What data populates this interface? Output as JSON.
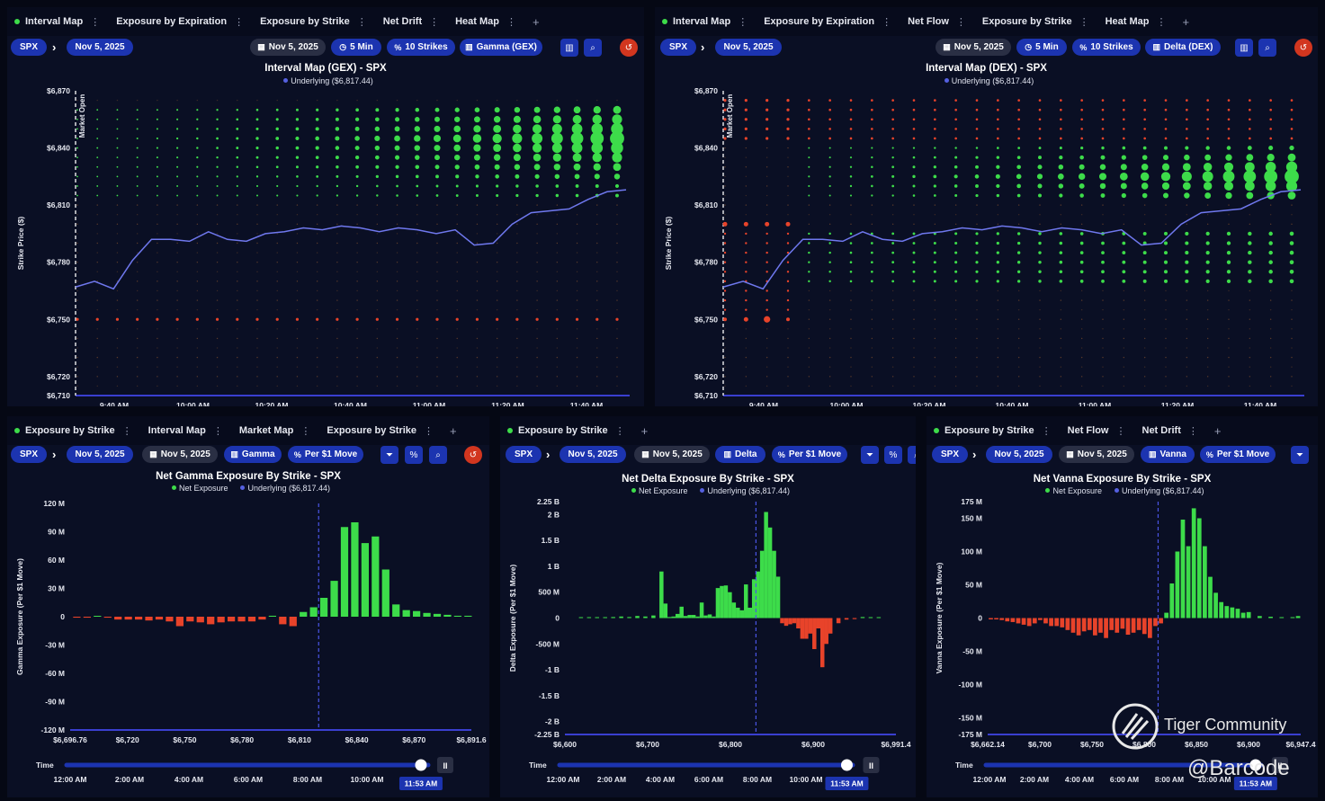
{
  "colors": {
    "green": "#3ddc4a",
    "red": "#e8432a",
    "blue": "#5560e0",
    "pill": "#1c34b0"
  },
  "panels": {
    "p1": {
      "tabs": [
        {
          "label": "Interval Map",
          "active": true
        },
        {
          "label": "Exposure by Expiration"
        },
        {
          "label": "Exposure by Strike"
        },
        {
          "label": "Net Drift"
        },
        {
          "label": "Heat Map"
        }
      ],
      "symbol": "SPX",
      "date": "Nov 5, 2025",
      "date2": "Nov 5, 2025",
      "interval": "5 Min",
      "strikes": "10 Strikes",
      "mode": "Gamma (GEX)",
      "title": "Interval Map (GEX) - SPX",
      "legend_underlying": "Underlying ($6,817.44)",
      "ylabel": "Strike Price ($)",
      "market_open": "Market Open"
    },
    "p2": {
      "tabs": [
        {
          "label": "Interval Map",
          "active": true
        },
        {
          "label": "Exposure by Expiration"
        },
        {
          "label": "Net Flow"
        },
        {
          "label": "Exposure by Strike"
        },
        {
          "label": "Heat Map"
        }
      ],
      "symbol": "SPX",
      "date": "Nov 5, 2025",
      "date2": "Nov 5, 2025",
      "interval": "5 Min",
      "strikes": "10 Strikes",
      "mode": "Delta (DEX)",
      "title": "Interval Map (DEX) - SPX",
      "legend_underlying": "Underlying ($6,817.44)",
      "ylabel": "Strike Price ($)",
      "market_open": "Market Open"
    },
    "p3": {
      "tabs": [
        {
          "label": "Exposure by Strike",
          "active": true
        },
        {
          "label": "Interval Map"
        },
        {
          "label": "Market Map"
        },
        {
          "label": "Exposure by Strike"
        }
      ],
      "symbol": "SPX",
      "date": "Nov 5, 2025",
      "date2": "Nov 5, 2025",
      "mode": "Gamma",
      "unit": "Per $1 Move",
      "title": "Net Gamma Exposure By Strike - SPX",
      "legend_net": "Net Exposure",
      "legend_underlying": "Underlying ($6,817.44)",
      "ylabel": "Gamma Exposure (Per $1 Move)"
    },
    "p4": {
      "tabs": [
        {
          "label": "Exposure by Strike",
          "active": true
        }
      ],
      "symbol": "SPX",
      "date": "Nov 5, 2025",
      "date2": "Nov 5, 2025",
      "mode": "Delta",
      "unit": "Per $1 Move",
      "title": "Net Delta Exposure By Strike - SPX",
      "legend_net": "Net Exposure",
      "legend_underlying": "Underlying ($6,817.44)",
      "ylabel": "Delta Exposure (Per $1 Move)"
    },
    "p5": {
      "tabs": [
        {
          "label": "Exposure by Strike",
          "active": true
        },
        {
          "label": "Net Flow"
        },
        {
          "label": "Net Drift"
        }
      ],
      "symbol": "SPX",
      "date": "Nov 5, 2025",
      "date2": "Nov 5, 2025",
      "mode": "Vanna",
      "unit": "Per $1 Move",
      "title": "Net Vanna Exposure By Strike - SPX",
      "legend_net": "Net Exposure",
      "legend_underlying": "Underlying ($6,817.44)",
      "ylabel": "Vanna Exposure (Per $1 Move)"
    }
  },
  "timeline": {
    "label": "Time",
    "ticks": [
      "12:00 AM",
      "2:00 AM",
      "4:00 AM",
      "6:00 AM",
      "8:00 AM",
      "10:00 AM"
    ],
    "current": "11:53 AM",
    "position": 0.98
  },
  "watermark": {
    "brand": "Tiger Community",
    "handle": "@Barcode"
  },
  "chart_data": [
    {
      "id": "gex_interval",
      "type": "scatter",
      "ylim": [
        6710,
        6870
      ],
      "yticks": [
        "$6,870",
        "$6,840",
        "$6,810",
        "$6,780",
        "$6,750",
        "$6,720",
        "$6,710"
      ],
      "ytick_values": [
        6870,
        6840,
        6810,
        6780,
        6750,
        6720,
        6710
      ],
      "xticks": [
        "9:40 AM",
        "10:00 AM",
        "10:20 AM",
        "10:40 AM",
        "11:00 AM",
        "11:20 AM",
        "11:40 AM"
      ],
      "underlying": [
        6767,
        6770,
        6766,
        6781,
        6792,
        6792,
        6791,
        6796,
        6792,
        6791,
        6795,
        6796,
        6798,
        6797,
        6799,
        6798,
        6796,
        6798,
        6797,
        6795,
        6797,
        6789,
        6790,
        6800,
        6806,
        6807,
        6808,
        6813,
        6817,
        6818
      ]
    },
    {
      "id": "dex_interval",
      "type": "scatter",
      "ylim": [
        6710,
        6870
      ],
      "yticks": [
        "$6,870",
        "$6,840",
        "$6,810",
        "$6,780",
        "$6,750",
        "$6,720",
        "$6,710"
      ],
      "ytick_values": [
        6870,
        6840,
        6810,
        6780,
        6750,
        6720,
        6710
      ],
      "xticks": [
        "9:40 AM",
        "10:00 AM",
        "10:20 AM",
        "10:40 AM",
        "11:00 AM",
        "11:20 AM",
        "11:40 AM"
      ],
      "underlying": [
        6767,
        6770,
        6766,
        6781,
        6792,
        6792,
        6791,
        6796,
        6792,
        6791,
        6795,
        6796,
        6798,
        6797,
        6799,
        6798,
        6796,
        6798,
        6797,
        6795,
        6797,
        6789,
        6790,
        6800,
        6806,
        6807,
        6808,
        6813,
        6817,
        6818
      ]
    },
    {
      "id": "gex_strike",
      "type": "bar",
      "ylim": [
        -120,
        120
      ],
      "yticks": [
        "120 M",
        "90 M",
        "60 M",
        "30 M",
        "0",
        "-30 M",
        "-60 M",
        "-90 M",
        "-120 M"
      ],
      "ytick_values": [
        120,
        90,
        60,
        30,
        0,
        -30,
        -60,
        -90,
        -120
      ],
      "xticks": [
        "$6,696.76",
        "$6,720",
        "$6,750",
        "$6,780",
        "$6,810",
        "$6,840",
        "$6,870",
        "$6,891.6"
      ],
      "xrange": [
        6696.76,
        6891.6
      ],
      "underlying": 6817.44,
      "x": [
        6700,
        6705,
        6710,
        6715,
        6720,
        6725,
        6730,
        6735,
        6740,
        6745,
        6750,
        6755,
        6760,
        6765,
        6770,
        6775,
        6780,
        6785,
        6790,
        6795,
        6800,
        6805,
        6810,
        6815,
        6820,
        6825,
        6830,
        6835,
        6840,
        6845,
        6850,
        6855,
        6860,
        6865,
        6870,
        6875,
        6880,
        6885,
        6890
      ],
      "values": [
        -1,
        -1,
        0,
        -1,
        -3,
        -3,
        -3,
        -4,
        -3,
        -5,
        -10,
        -5,
        -6,
        -8,
        -6,
        -5,
        -5,
        -5,
        -3,
        1,
        -8,
        -10,
        5,
        10,
        20,
        38,
        95,
        100,
        78,
        85,
        50,
        13,
        7,
        6,
        4,
        3,
        2,
        1,
        1
      ]
    },
    {
      "id": "dex_strike",
      "type": "bar",
      "ylim": [
        -2.25,
        2.25
      ],
      "yticks": [
        "2.25 B",
        "2 B",
        "1.5 B",
        "1 B",
        "500 M",
        "0",
        "-500 M",
        "-1 B",
        "-1.5 B",
        "-2 B",
        "-2.25 B"
      ],
      "ytick_values": [
        2.25,
        2,
        1.5,
        1,
        0.5,
        0,
        -0.5,
        -1,
        -1.5,
        -2,
        -2.25
      ],
      "xticks": [
        "$6,600",
        "$6,700",
        "$6,800",
        "$6,900",
        "$6,991.4"
      ],
      "xrange": [
        6580,
        6991.4
      ],
      "underlying": 6817.44,
      "x": [
        6600,
        6610,
        6620,
        6630,
        6640,
        6650,
        6660,
        6670,
        6680,
        6690,
        6700,
        6705,
        6710,
        6715,
        6720,
        6725,
        6730,
        6735,
        6740,
        6745,
        6750,
        6755,
        6760,
        6765,
        6770,
        6775,
        6780,
        6785,
        6790,
        6795,
        6800,
        6805,
        6810,
        6815,
        6820,
        6825,
        6830,
        6835,
        6840,
        6845,
        6850,
        6855,
        6860,
        6865,
        6870,
        6875,
        6880,
        6885,
        6890,
        6895,
        6900,
        6905,
        6910,
        6920,
        6930,
        6940,
        6950,
        6960,
        6970
      ],
      "values": [
        0,
        0,
        0.01,
        0.01,
        0.02,
        0.03,
        0.02,
        0.04,
        0.03,
        0.05,
        0.9,
        0.28,
        0.02,
        0.03,
        0.08,
        0.22,
        0.04,
        0.06,
        0.06,
        0.03,
        0.3,
        0.05,
        0.07,
        0.03,
        0.58,
        0.62,
        0.63,
        0.5,
        0.3,
        0.2,
        0.15,
        0.65,
        0.2,
        0.75,
        0.9,
        1.3,
        2.05,
        1.75,
        1.3,
        0.8,
        -0.1,
        -0.15,
        -0.12,
        -0.1,
        -0.2,
        -0.4,
        -0.4,
        -0.3,
        -0.6,
        -0.2,
        -0.95,
        -0.5,
        -0.3,
        -0.1,
        -0.03,
        -0.02,
        0.02,
        0.01,
        0
      ]
    },
    {
      "id": "vanna_strike",
      "type": "bar",
      "ylim": [
        -175,
        175
      ],
      "yticks": [
        "175 M",
        "150 M",
        "100 M",
        "50 M",
        "0",
        "-50 M",
        "-100 M",
        "-150 M",
        "-175 M"
      ],
      "ytick_values": [
        175,
        150,
        100,
        50,
        0,
        -50,
        -100,
        -150,
        -175
      ],
      "xticks": [
        "$6,662.14",
        "$6,700",
        "$6,750",
        "$6,800",
        "$6,850",
        "$6,900",
        "$6,947.4"
      ],
      "xrange": [
        6662.14,
        6947.4
      ],
      "underlying": 6817.44,
      "x": [
        6665,
        6670,
        6675,
        6680,
        6685,
        6690,
        6695,
        6700,
        6705,
        6710,
        6715,
        6720,
        6725,
        6730,
        6735,
        6740,
        6745,
        6750,
        6755,
        6760,
        6765,
        6770,
        6775,
        6780,
        6785,
        6790,
        6795,
        6800,
        6805,
        6810,
        6815,
        6820,
        6825,
        6830,
        6835,
        6840,
        6845,
        6850,
        6855,
        6860,
        6865,
        6870,
        6875,
        6880,
        6885,
        6890,
        6895,
        6900,
        6910,
        6920,
        6930,
        6940,
        6945
      ],
      "values": [
        -2,
        -2,
        -3,
        -5,
        -6,
        -8,
        -10,
        -12,
        -8,
        -3,
        -8,
        -12,
        -12,
        -14,
        -18,
        -22,
        -26,
        -20,
        -18,
        -26,
        -22,
        -30,
        -18,
        -22,
        -16,
        -25,
        -22,
        -18,
        -24,
        -30,
        -12,
        -8,
        8,
        52,
        100,
        148,
        108,
        165,
        150,
        108,
        62,
        38,
        24,
        18,
        16,
        14,
        8,
        9,
        3,
        2,
        1,
        1,
        3
      ]
    }
  ]
}
